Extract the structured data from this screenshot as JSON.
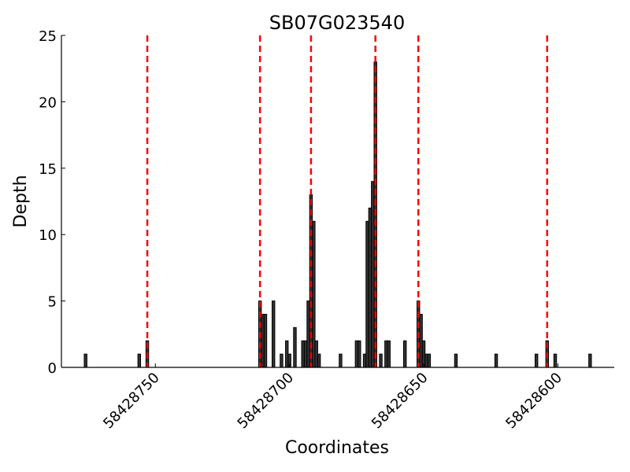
{
  "chart_data": {
    "type": "bar",
    "title": "SB07G023540",
    "xlabel": "Coordinates",
    "ylabel": "Depth",
    "xlim": [
      58428785,
      58428579
    ],
    "x_reversed": true,
    "ylim": [
      0,
      25
    ],
    "xticks": [
      58428750,
      58428700,
      58428650,
      58428600
    ],
    "yticks": [
      0,
      5,
      10,
      15,
      20,
      25
    ],
    "grid": false,
    "bar_color": "#333333",
    "bars": [
      {
        "x": 58428776,
        "y": 1
      },
      {
        "x": 58428756,
        "y": 1
      },
      {
        "x": 58428753,
        "y": 2
      },
      {
        "x": 58428711,
        "y": 5
      },
      {
        "x": 58428710,
        "y": 4
      },
      {
        "x": 58428709,
        "y": 4
      },
      {
        "x": 58428706,
        "y": 5
      },
      {
        "x": 58428703,
        "y": 1
      },
      {
        "x": 58428701,
        "y": 2
      },
      {
        "x": 58428700,
        "y": 1
      },
      {
        "x": 58428698,
        "y": 3
      },
      {
        "x": 58428695,
        "y": 2
      },
      {
        "x": 58428694,
        "y": 2
      },
      {
        "x": 58428693,
        "y": 5
      },
      {
        "x": 58428692,
        "y": 13
      },
      {
        "x": 58428691,
        "y": 11
      },
      {
        "x": 58428690,
        "y": 2
      },
      {
        "x": 58428689,
        "y": 1
      },
      {
        "x": 58428681,
        "y": 1
      },
      {
        "x": 58428675,
        "y": 2
      },
      {
        "x": 58428674,
        "y": 2
      },
      {
        "x": 58428672,
        "y": 1
      },
      {
        "x": 58428671,
        "y": 11
      },
      {
        "x": 58428670,
        "y": 12
      },
      {
        "x": 58428669,
        "y": 14
      },
      {
        "x": 58428668,
        "y": 23
      },
      {
        "x": 58428666,
        "y": 1
      },
      {
        "x": 58428664,
        "y": 2
      },
      {
        "x": 58428663,
        "y": 2
      },
      {
        "x": 58428657,
        "y": 2
      },
      {
        "x": 58428652,
        "y": 5
      },
      {
        "x": 58428651,
        "y": 4
      },
      {
        "x": 58428650,
        "y": 2
      },
      {
        "x": 58428649,
        "y": 1
      },
      {
        "x": 58428648,
        "y": 1
      },
      {
        "x": 58428638,
        "y": 1
      },
      {
        "x": 58428623,
        "y": 1
      },
      {
        "x": 58428608,
        "y": 1
      },
      {
        "x": 58428604,
        "y": 2
      },
      {
        "x": 58428601,
        "y": 1
      },
      {
        "x": 58428588,
        "y": 1
      }
    ],
    "vlines": {
      "color": "#ff0000",
      "style": "dashed",
      "x": [
        58428753,
        58428711,
        58428692,
        58428668,
        58428652,
        58428604
      ]
    }
  }
}
